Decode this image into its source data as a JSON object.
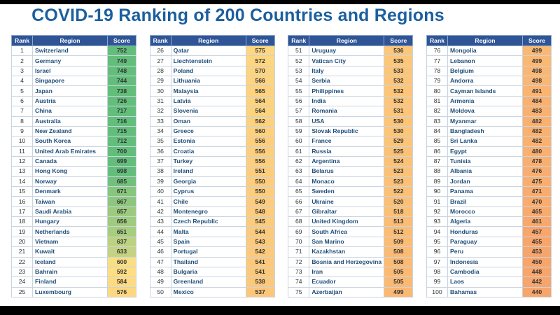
{
  "title": "COVID-19 Ranking of 200 Countries and Regions",
  "headers": {
    "rank": "Rank",
    "region": "Region",
    "score": "Score"
  },
  "colors": {
    "header_bg": "#2f5597",
    "title": "#1c5f9e",
    "region_text": "#1f4e79",
    "score_high": "#63be7b",
    "score_mid": "#ffe084",
    "score_low": "#f8a56b"
  },
  "tables": [
    [
      {
        "rank": "1",
        "region": "Switzerland",
        "score": "752"
      },
      {
        "rank": "2",
        "region": "Germany",
        "score": "749"
      },
      {
        "rank": "3",
        "region": "Israel",
        "score": "748"
      },
      {
        "rank": "4",
        "region": "Singapore",
        "score": "744"
      },
      {
        "rank": "5",
        "region": "Japan",
        "score": "738"
      },
      {
        "rank": "6",
        "region": "Austria",
        "score": "726"
      },
      {
        "rank": "7",
        "region": "China",
        "score": "717"
      },
      {
        "rank": "8",
        "region": "Australia",
        "score": "716"
      },
      {
        "rank": "9",
        "region": "New Zealand",
        "score": "715"
      },
      {
        "rank": "10",
        "region": "South Korea",
        "score": "712"
      },
      {
        "rank": "11",
        "region": "United Arab Emirates",
        "score": "700"
      },
      {
        "rank": "12",
        "region": "Canada",
        "score": "699"
      },
      {
        "rank": "13",
        "region": "Hong Kong",
        "score": "698"
      },
      {
        "rank": "14",
        "region": "Norway",
        "score": "685"
      },
      {
        "rank": "15",
        "region": "Denmark",
        "score": "671"
      },
      {
        "rank": "16",
        "region": "Taiwan",
        "score": "667"
      },
      {
        "rank": "17",
        "region": "Saudi Arabia",
        "score": "657"
      },
      {
        "rank": "18",
        "region": "Hungary",
        "score": "656"
      },
      {
        "rank": "19",
        "region": "Netherlands",
        "score": "651"
      },
      {
        "rank": "20",
        "region": "Vietnam",
        "score": "637"
      },
      {
        "rank": "21",
        "region": "Kuwait",
        "score": "633"
      },
      {
        "rank": "22",
        "region": "Iceland",
        "score": "600"
      },
      {
        "rank": "23",
        "region": "Bahrain",
        "score": "592"
      },
      {
        "rank": "24",
        "region": "Finland",
        "score": "584"
      },
      {
        "rank": "25",
        "region": "Luxembourg",
        "score": "576"
      }
    ],
    [
      {
        "rank": "26",
        "region": "Qatar",
        "score": "575"
      },
      {
        "rank": "27",
        "region": "Liechtenstein",
        "score": "572"
      },
      {
        "rank": "28",
        "region": "Poland",
        "score": "570"
      },
      {
        "rank": "29",
        "region": "Lithuania",
        "score": "566"
      },
      {
        "rank": "30",
        "region": "Malaysia",
        "score": "565"
      },
      {
        "rank": "31",
        "region": "Latvia",
        "score": "564"
      },
      {
        "rank": "32",
        "region": "Slovenia",
        "score": "564"
      },
      {
        "rank": "33",
        "region": "Oman",
        "score": "562"
      },
      {
        "rank": "34",
        "region": "Greece",
        "score": "560"
      },
      {
        "rank": "35",
        "region": "Estonia",
        "score": "556"
      },
      {
        "rank": "36",
        "region": "Croatia",
        "score": "556"
      },
      {
        "rank": "37",
        "region": "Turkey",
        "score": "556"
      },
      {
        "rank": "38",
        "region": "Ireland",
        "score": "551"
      },
      {
        "rank": "39",
        "region": "Georgia",
        "score": "550"
      },
      {
        "rank": "40",
        "region": "Cyprus",
        "score": "550"
      },
      {
        "rank": "41",
        "region": "Chile",
        "score": "549"
      },
      {
        "rank": "42",
        "region": "Montenegro",
        "score": "548"
      },
      {
        "rank": "43",
        "region": "Czech Republic",
        "score": "545"
      },
      {
        "rank": "44",
        "region": "Malta",
        "score": "544"
      },
      {
        "rank": "45",
        "region": "Spain",
        "score": "543"
      },
      {
        "rank": "46",
        "region": "Portugal",
        "score": "542"
      },
      {
        "rank": "47",
        "region": "Thailand",
        "score": "541"
      },
      {
        "rank": "48",
        "region": "Bulgaria",
        "score": "541"
      },
      {
        "rank": "49",
        "region": "Greenland",
        "score": "538"
      },
      {
        "rank": "50",
        "region": "Mexico",
        "score": "537"
      }
    ],
    [
      {
        "rank": "51",
        "region": "Uruguay",
        "score": "536"
      },
      {
        "rank": "52",
        "region": "Vatican City",
        "score": "535"
      },
      {
        "rank": "53",
        "region": "Italy",
        "score": "533"
      },
      {
        "rank": "54",
        "region": "Serbia",
        "score": "532"
      },
      {
        "rank": "55",
        "region": "Philippines",
        "score": "532"
      },
      {
        "rank": "56",
        "region": "India",
        "score": "532"
      },
      {
        "rank": "57",
        "region": "Romania",
        "score": "531"
      },
      {
        "rank": "58",
        "region": "USA",
        "score": "530"
      },
      {
        "rank": "59",
        "region": "Slovak Republic",
        "score": "530"
      },
      {
        "rank": "60",
        "region": "France",
        "score": "529"
      },
      {
        "rank": "61",
        "region": "Russia",
        "score": "525"
      },
      {
        "rank": "62",
        "region": "Argentina",
        "score": "524"
      },
      {
        "rank": "63",
        "region": "Belarus",
        "score": "523"
      },
      {
        "rank": "64",
        "region": "Monaco",
        "score": "523"
      },
      {
        "rank": "65",
        "region": "Sweden",
        "score": "522"
      },
      {
        "rank": "66",
        "region": "Ukraine",
        "score": "520"
      },
      {
        "rank": "67",
        "region": "Gibraltar",
        "score": "518"
      },
      {
        "rank": "68",
        "region": "United Kingdom",
        "score": "513"
      },
      {
        "rank": "69",
        "region": "South Africa",
        "score": "512"
      },
      {
        "rank": "70",
        "region": "San Marino",
        "score": "509"
      },
      {
        "rank": "71",
        "region": "Kazakhstan",
        "score": "508"
      },
      {
        "rank": "72",
        "region": "Bosnia and Herzegovina",
        "score": "508"
      },
      {
        "rank": "73",
        "region": "Iran",
        "score": "505"
      },
      {
        "rank": "74",
        "region": "Ecuador",
        "score": "505"
      },
      {
        "rank": "75",
        "region": "Azerbaijan",
        "score": "499"
      }
    ],
    [
      {
        "rank": "76",
        "region": "Mongolia",
        "score": "499"
      },
      {
        "rank": "77",
        "region": "Lebanon",
        "score": "499"
      },
      {
        "rank": "78",
        "region": "Belgium",
        "score": "498"
      },
      {
        "rank": "79",
        "region": "Andorra",
        "score": "498"
      },
      {
        "rank": "80",
        "region": "Cayman Islands",
        "score": "491"
      },
      {
        "rank": "81",
        "region": "Armenia",
        "score": "484"
      },
      {
        "rank": "82",
        "region": "Moldova",
        "score": "483"
      },
      {
        "rank": "83",
        "region": "Myanmar",
        "score": "482"
      },
      {
        "rank": "84",
        "region": "Bangladesh",
        "score": "482"
      },
      {
        "rank": "85",
        "region": "Sri Lanka",
        "score": "482"
      },
      {
        "rank": "86",
        "region": "Egypt",
        "score": "480"
      },
      {
        "rank": "87",
        "region": "Tunisia",
        "score": "478"
      },
      {
        "rank": "88",
        "region": "Albania",
        "score": "476"
      },
      {
        "rank": "89",
        "region": "Jordan",
        "score": "475"
      },
      {
        "rank": "90",
        "region": "Panama",
        "score": "471"
      },
      {
        "rank": "91",
        "region": "Brazil",
        "score": "470"
      },
      {
        "rank": "92",
        "region": "Morocco",
        "score": "465"
      },
      {
        "rank": "93",
        "region": "Algeria",
        "score": "461"
      },
      {
        "rank": "94",
        "region": "Honduras",
        "score": "457"
      },
      {
        "rank": "95",
        "region": "Paraguay",
        "score": "455"
      },
      {
        "rank": "96",
        "region": "Peru",
        "score": "453"
      },
      {
        "rank": "97",
        "region": "Indonesia",
        "score": "450"
      },
      {
        "rank": "98",
        "region": "Cambodia",
        "score": "448"
      },
      {
        "rank": "99",
        "region": "Laos",
        "score": "442"
      },
      {
        "rank": "100",
        "region": "Bahamas",
        "score": "440"
      }
    ]
  ]
}
